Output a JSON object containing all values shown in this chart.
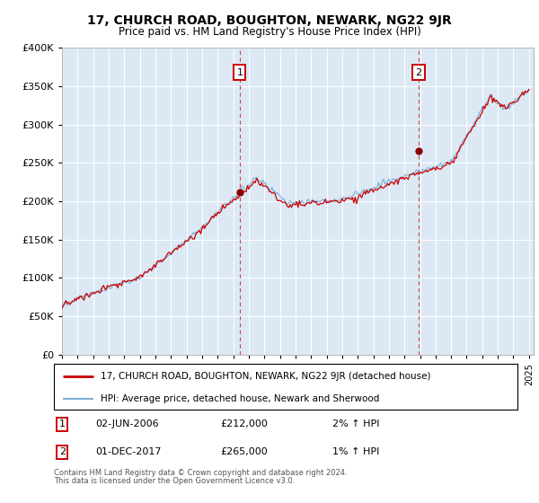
{
  "title": "17, CHURCH ROAD, BOUGHTON, NEWARK, NG22 9JR",
  "subtitle": "Price paid vs. HM Land Registry's House Price Index (HPI)",
  "background_color": "#dce9f5",
  "ylim": [
    0,
    400000
  ],
  "yticks": [
    0,
    50000,
    100000,
    150000,
    200000,
    250000,
    300000,
    350000,
    400000
  ],
  "xmin": 1995,
  "xmax": 2025.3,
  "legend_line1": "17, CHURCH ROAD, BOUGHTON, NEWARK, NG22 9JR (detached house)",
  "legend_line2": "HPI: Average price, detached house, Newark and Sherwood",
  "footnote1": "Contains HM Land Registry data © Crown copyright and database right 2024.",
  "footnote2": "This data is licensed under the Open Government Licence v3.0.",
  "ann1_label": "1",
  "ann1_date": "02-JUN-2006",
  "ann1_price": "£212,000",
  "ann1_hpi": "2% ↑ HPI",
  "ann1_x": 2006.42,
  "ann1_y": 212000,
  "ann2_label": "2",
  "ann2_date": "01-DEC-2017",
  "ann2_price": "£265,000",
  "ann2_hpi": "1% ↑ HPI",
  "ann2_x": 2017.92,
  "ann2_y": 265000,
  "hpi_color": "#7bafd4",
  "price_color": "#cc0000",
  "marker_color": "#8b0000",
  "vline_color": "#cc0000"
}
